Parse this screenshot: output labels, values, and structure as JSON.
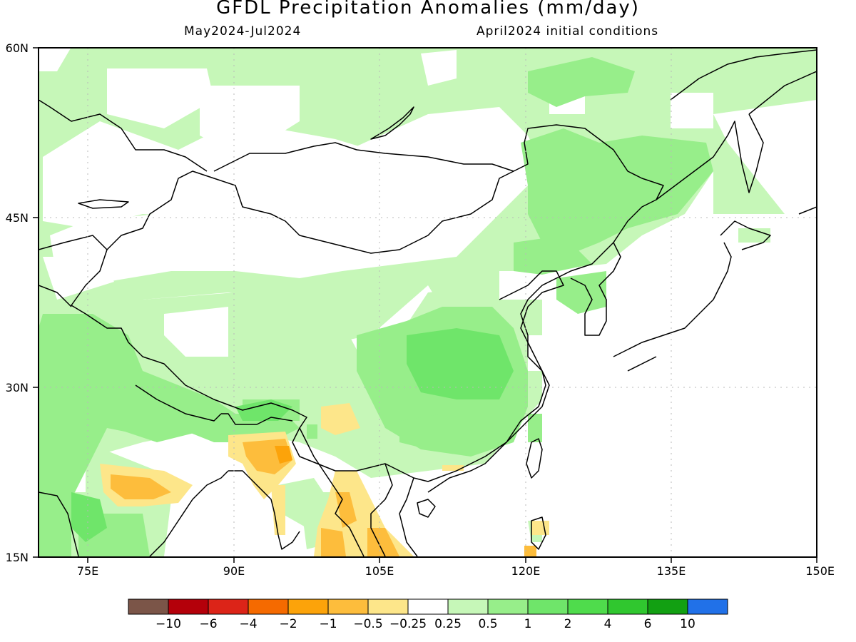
{
  "title": "GFDL Precipitation Anomalies (mm/day)",
  "period": "May2024-Jul2024",
  "init": "April2024 initial conditions",
  "lat_ticks": [
    "60N",
    "45N",
    "30N",
    "15N"
  ],
  "lon_ticks": [
    "75E",
    "90E",
    "105E",
    "120E",
    "135E",
    "150E"
  ],
  "colorbar": {
    "colors": [
      "#7b5548",
      "#b4000a",
      "#dc2418",
      "#f56a00",
      "#fca30a",
      "#fdbd3c",
      "#fde68a",
      "#ffffff",
      "#c6f7b8",
      "#97ee8a",
      "#6fe56a",
      "#4fdc4c",
      "#30c72f",
      "#12a012",
      "#2171e8"
    ],
    "labels": [
      "-10",
      "-6",
      "-4",
      "-2",
      "-1",
      "-0.5",
      "-0.25",
      "0.25",
      "0.5",
      "1",
      "2",
      "4",
      "6",
      "10"
    ]
  }
}
